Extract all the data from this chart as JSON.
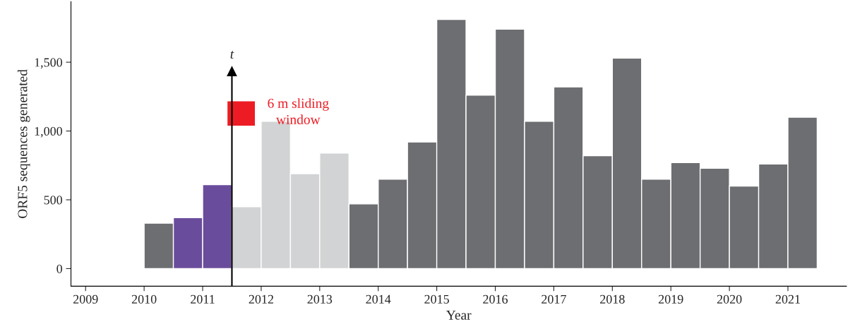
{
  "chart_data": {
    "type": "histogram",
    "xlabel": "Year",
    "ylabel": "ORF5 sequences generated",
    "bins": [
      2010,
      2010.5,
      2011,
      2011.5,
      2012,
      2012.5,
      2013,
      2013.5,
      2014,
      2014.5,
      2015,
      2015.5,
      2016,
      2016.5,
      2017,
      2017.5,
      2018,
      2018.5,
      2019,
      2019.5,
      2020,
      2020.5,
      2021,
      2021.5
    ],
    "values": [
      330,
      370,
      610,
      450,
      1070,
      690,
      840,
      470,
      650,
      920,
      1810,
      1260,
      1740,
      1070,
      1320,
      820,
      1530,
      650,
      770,
      730,
      600,
      760,
      1100
    ],
    "colors": [
      "#6d6e71",
      "#6a4c9c",
      "#6a4c9c",
      "#d1d3d4",
      "#d1d3d4",
      "#d1d3d4",
      "#d1d3d4",
      "#6d6e71",
      "#6d6e71",
      "#6d6e71",
      "#6d6e71",
      "#6d6e71",
      "#6d6e71",
      "#6d6e71",
      "#6d6e71",
      "#6d6e71",
      "#6d6e71",
      "#6d6e71",
      "#6d6e71",
      "#6d6e71",
      "#6d6e71",
      "#6d6e71",
      "#6d6e71"
    ],
    "xlim": [
      2008.75,
      2022
    ],
    "xticks": [
      2009,
      2010,
      2011,
      2012,
      2013,
      2014,
      2015,
      2016,
      2017,
      2018,
      2019,
      2020,
      2021
    ],
    "ylim": [
      -128,
      1940
    ],
    "yticks": [
      0,
      500,
      {
        "value": 1000,
        "label": "1,000"
      },
      {
        "value": 1500,
        "label": "1,500"
      }
    ],
    "ref_lines": [
      {
        "axis": "x",
        "value": 2011.5,
        "label": "t",
        "color": "#000000"
      }
    ],
    "annotations": [
      "6 m sliding\nwindow"
    ],
    "grid": false,
    "legend": false
  }
}
